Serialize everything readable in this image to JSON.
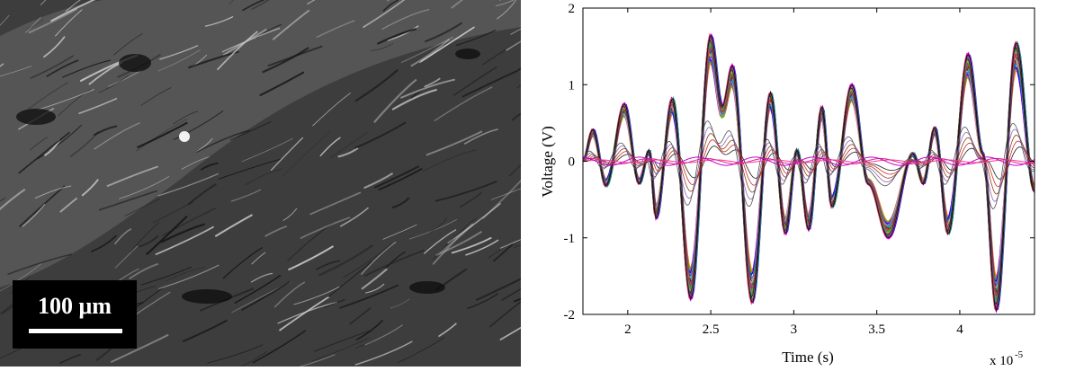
{
  "micrograph": {
    "scale_bar_label": "100 μm"
  },
  "chart_data": {
    "type": "line",
    "title": "",
    "xlabel": "Time (s)",
    "ylabel": "Voltage (V)",
    "x_multiplier": "x 10",
    "x_exponent": "-5",
    "xlim": [
      1.73,
      4.45
    ],
    "ylim": [
      -2,
      2
    ],
    "xticks": [
      2,
      2.5,
      3,
      3.5,
      4
    ],
    "xtick_labels": [
      "2",
      "2.5",
      "3",
      "3.5",
      "4"
    ],
    "yticks": [
      -2,
      -1,
      0,
      1,
      2
    ],
    "ytick_labels": [
      "-2",
      "-1",
      "0",
      "1",
      "2"
    ],
    "grid": false,
    "envelope_peaks": [
      {
        "x": 1.73,
        "y": 0.0
      },
      {
        "x": 1.79,
        "y": 0.42
      },
      {
        "x": 1.87,
        "y": -0.32
      },
      {
        "x": 1.98,
        "y": 0.75
      },
      {
        "x": 2.07,
        "y": -0.3
      },
      {
        "x": 2.13,
        "y": 0.15
      },
      {
        "x": 2.17,
        "y": -0.75
      },
      {
        "x": 2.27,
        "y": 0.82
      },
      {
        "x": 2.38,
        "y": -1.8
      },
      {
        "x": 2.5,
        "y": 1.65
      },
      {
        "x": 2.57,
        "y": 0.72
      },
      {
        "x": 2.63,
        "y": 1.25
      },
      {
        "x": 2.75,
        "y": -1.85
      },
      {
        "x": 2.86,
        "y": 0.9
      },
      {
        "x": 2.95,
        "y": -0.95
      },
      {
        "x": 3.02,
        "y": 0.15
      },
      {
        "x": 3.09,
        "y": -0.9
      },
      {
        "x": 3.17,
        "y": 0.72
      },
      {
        "x": 3.23,
        "y": -0.6
      },
      {
        "x": 3.35,
        "y": 1.0
      },
      {
        "x": 3.45,
        "y": -0.3
      },
      {
        "x": 3.57,
        "y": -1.0
      },
      {
        "x": 3.72,
        "y": 0.1
      },
      {
        "x": 3.78,
        "y": -0.3
      },
      {
        "x": 3.85,
        "y": 0.45
      },
      {
        "x": 3.93,
        "y": -0.95
      },
      {
        "x": 4.05,
        "y": 1.4
      },
      {
        "x": 4.14,
        "y": 0.1
      },
      {
        "x": 4.22,
        "y": -1.95
      },
      {
        "x": 4.34,
        "y": 1.55
      },
      {
        "x": 4.45,
        "y": -0.4
      }
    ],
    "series_count": 60,
    "series_colors": [
      "#e41a1c",
      "#377eb8",
      "#4daf4a",
      "#984ea3",
      "#ff7f00",
      "#a6a600",
      "#a65628",
      "#f781bf",
      "#17becf",
      "#2c7fb8",
      "#d95f02",
      "#1b9e77",
      "#7570b3",
      "#e7298a",
      "#66a61e",
      "#e6ab02",
      "#0000ff",
      "#00aa00",
      "#aa00aa",
      "#ff4444",
      "#00cccc",
      "#333333",
      "#8c564b",
      "#bcbd22",
      "#9467bd",
      "#ff9896",
      "#2ca02c",
      "#1f77b4",
      "#d62728",
      "#ff00ff"
    ],
    "flat_line_colors": [
      "#ff3399",
      "#d62790",
      "#cc00cc"
    ],
    "weak_line_colors": [
      "#222222",
      "#d62728",
      "#8b4513",
      "#9467bd",
      "#555555"
    ]
  }
}
